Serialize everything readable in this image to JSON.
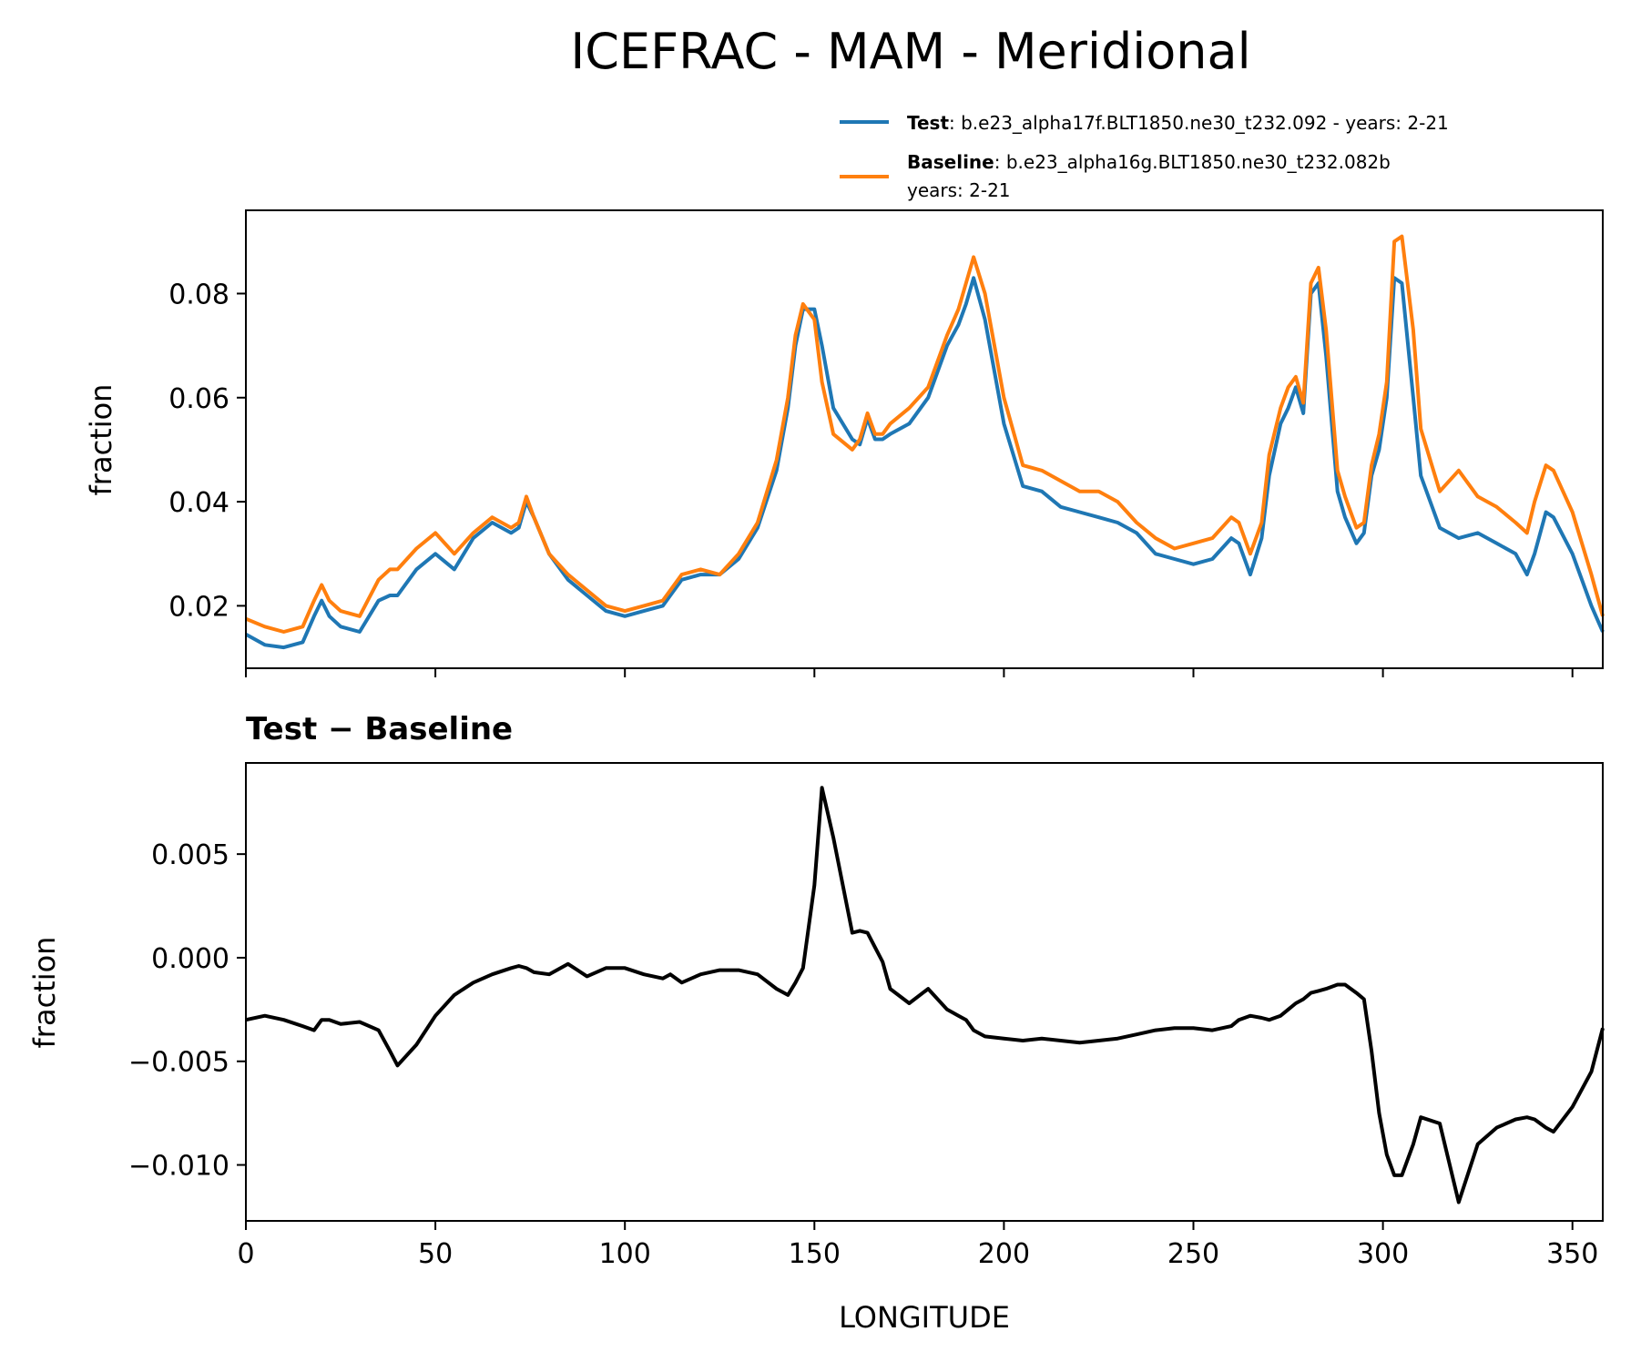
{
  "chart_data": [
    {
      "type": "line",
      "title": "ICEFRAC - MAM - Meridional",
      "xlabel": "",
      "ylabel": "fraction",
      "xlim": [
        0,
        358
      ],
      "ylim": [
        0.008,
        0.096
      ],
      "yticks": [
        0.02,
        0.04,
        0.06,
        0.08
      ],
      "ytick_labels": [
        "0.02",
        "0.04",
        "0.06",
        "0.08"
      ],
      "xticks": [
        0,
        50,
        100,
        150,
        200,
        250,
        300,
        350
      ],
      "legend": {
        "placement": "above-right",
        "entries": [
          {
            "bold": "Test",
            "text": ": b.e23_alpha17f.BLT1850.ne30_t232.092 - years: 2-21",
            "line2": ""
          },
          {
            "bold": "Baseline",
            "text": ": b.e23_alpha16g.BLT1850.ne30_t232.082b",
            "line2": "years: 2-21"
          }
        ]
      },
      "x": [
        0,
        5,
        10,
        15,
        18,
        20,
        22,
        25,
        30,
        35,
        38,
        40,
        45,
        50,
        55,
        60,
        65,
        70,
        72,
        74,
        76,
        80,
        85,
        90,
        95,
        100,
        105,
        110,
        112,
        115,
        120,
        125,
        130,
        135,
        140,
        143,
        145,
        147,
        150,
        152,
        155,
        160,
        162,
        164,
        166,
        168,
        170,
        175,
        180,
        185,
        188,
        190,
        192,
        195,
        200,
        205,
        210,
        215,
        220,
        225,
        230,
        235,
        240,
        245,
        250,
        255,
        260,
        262,
        265,
        268,
        270,
        273,
        275,
        277,
        279,
        281,
        283,
        285,
        288,
        290,
        293,
        295,
        297,
        299,
        301,
        303,
        305,
        308,
        310,
        315,
        320,
        325,
        330,
        335,
        338,
        340,
        343,
        345,
        350,
        355,
        358
      ],
      "series": [
        {
          "name": "Test",
          "color": "#1f77b4",
          "values": [
            0.0145,
            0.0125,
            0.012,
            0.013,
            0.018,
            0.021,
            0.018,
            0.016,
            0.015,
            0.021,
            0.022,
            0.022,
            0.027,
            0.03,
            0.027,
            0.033,
            0.036,
            0.034,
            0.035,
            0.04,
            0.037,
            0.03,
            0.025,
            0.022,
            0.019,
            0.018,
            0.019,
            0.02,
            0.022,
            0.025,
            0.026,
            0.026,
            0.029,
            0.035,
            0.046,
            0.058,
            0.07,
            0.077,
            0.077,
            0.07,
            0.058,
            0.052,
            0.051,
            0.056,
            0.052,
            0.052,
            0.053,
            0.055,
            0.06,
            0.07,
            0.074,
            0.078,
            0.083,
            0.075,
            0.055,
            0.043,
            0.042,
            0.039,
            0.038,
            0.037,
            0.036,
            0.034,
            0.03,
            0.029,
            0.028,
            0.029,
            0.033,
            0.032,
            0.026,
            0.033,
            0.045,
            0.055,
            0.058,
            0.062,
            0.057,
            0.08,
            0.082,
            0.068,
            0.042,
            0.037,
            0.032,
            0.034,
            0.045,
            0.05,
            0.06,
            0.083,
            0.082,
            0.06,
            0.045,
            0.035,
            0.033,
            0.034,
            0.032,
            0.03,
            0.026,
            0.03,
            0.038,
            0.037,
            0.03,
            0.02,
            0.015
          ]
        },
        {
          "name": "Baseline",
          "color": "#ff7f0e",
          "values": [
            0.0175,
            0.016,
            0.015,
            0.016,
            0.021,
            0.024,
            0.021,
            0.019,
            0.018,
            0.025,
            0.027,
            0.027,
            0.031,
            0.034,
            0.03,
            0.034,
            0.037,
            0.035,
            0.036,
            0.041,
            0.037,
            0.03,
            0.026,
            0.023,
            0.02,
            0.019,
            0.02,
            0.021,
            0.023,
            0.026,
            0.027,
            0.026,
            0.03,
            0.036,
            0.048,
            0.06,
            0.072,
            0.078,
            0.075,
            0.063,
            0.053,
            0.05,
            0.052,
            0.057,
            0.053,
            0.053,
            0.055,
            0.058,
            0.062,
            0.072,
            0.077,
            0.082,
            0.087,
            0.08,
            0.06,
            0.047,
            0.046,
            0.044,
            0.042,
            0.042,
            0.04,
            0.036,
            0.033,
            0.031,
            0.032,
            0.033,
            0.037,
            0.036,
            0.03,
            0.036,
            0.049,
            0.058,
            0.062,
            0.064,
            0.059,
            0.082,
            0.085,
            0.073,
            0.046,
            0.041,
            0.035,
            0.036,
            0.047,
            0.053,
            0.063,
            0.09,
            0.091,
            0.073,
            0.054,
            0.042,
            0.046,
            0.041,
            0.039,
            0.036,
            0.034,
            0.04,
            0.047,
            0.046,
            0.038,
            0.026,
            0.018
          ]
        }
      ]
    },
    {
      "type": "line",
      "title": "Test − Baseline",
      "xlabel": "LONGITUDE",
      "ylabel": "fraction",
      "xlim": [
        0,
        358
      ],
      "ylim": [
        -0.0127,
        0.0094
      ],
      "yticks": [
        0.005,
        0.0,
        -0.005,
        -0.01
      ],
      "ytick_labels": [
        "0.005",
        "0.000",
        "−0.005",
        "−0.010"
      ],
      "xticks": [
        0,
        50,
        100,
        150,
        200,
        250,
        300,
        350
      ],
      "xtick_labels": [
        "0",
        "50",
        "100",
        "150",
        "200",
        "250",
        "300",
        "350"
      ],
      "x": [
        0,
        5,
        10,
        15,
        18,
        20,
        22,
        25,
        30,
        35,
        38,
        40,
        45,
        50,
        55,
        60,
        65,
        70,
        72,
        74,
        76,
        80,
        85,
        90,
        95,
        100,
        105,
        110,
        112,
        115,
        120,
        125,
        130,
        135,
        140,
        143,
        145,
        147,
        150,
        152,
        155,
        160,
        162,
        164,
        166,
        168,
        170,
        175,
        180,
        185,
        188,
        190,
        192,
        195,
        200,
        205,
        210,
        215,
        220,
        225,
        230,
        235,
        240,
        245,
        250,
        255,
        260,
        262,
        265,
        268,
        270,
        273,
        275,
        277,
        279,
        281,
        283,
        285,
        288,
        290,
        293,
        295,
        297,
        299,
        301,
        303,
        305,
        308,
        310,
        315,
        320,
        325,
        330,
        335,
        338,
        340,
        343,
        345,
        350,
        355,
        358
      ],
      "series": [
        {
          "name": "Test − Baseline",
          "color": "#000000",
          "values": [
            -0.003,
            -0.0028,
            -0.003,
            -0.0033,
            -0.0035,
            -0.003,
            -0.003,
            -0.0032,
            -0.0031,
            -0.0035,
            -0.0045,
            -0.0052,
            -0.0042,
            -0.0028,
            -0.0018,
            -0.0012,
            -0.0008,
            -0.0005,
            -0.0004,
            -0.0005,
            -0.0007,
            -0.0008,
            -0.0003,
            -0.0009,
            -0.0005,
            -0.0005,
            -0.0008,
            -0.001,
            -0.0008,
            -0.0012,
            -0.0008,
            -0.0006,
            -0.0006,
            -0.0008,
            -0.0015,
            -0.0018,
            -0.0012,
            -0.0005,
            0.0035,
            0.0082,
            0.0058,
            0.0012,
            0.0013,
            0.0012,
            0.0005,
            -0.0002,
            -0.0015,
            -0.0022,
            -0.0015,
            -0.0025,
            -0.0028,
            -0.003,
            -0.0035,
            -0.0038,
            -0.0039,
            -0.004,
            -0.0039,
            -0.004,
            -0.0041,
            -0.004,
            -0.0039,
            -0.0037,
            -0.0035,
            -0.0034,
            -0.0034,
            -0.0035,
            -0.0033,
            -0.003,
            -0.0028,
            -0.0029,
            -0.003,
            -0.0028,
            -0.0025,
            -0.0022,
            -0.002,
            -0.0017,
            -0.0016,
            -0.0015,
            -0.0013,
            -0.0013,
            -0.0017,
            -0.002,
            -0.0045,
            -0.0075,
            -0.0095,
            -0.0105,
            -0.0105,
            -0.009,
            -0.0077,
            -0.008,
            -0.0118,
            -0.009,
            -0.0082,
            -0.0078,
            -0.0077,
            -0.0078,
            -0.0082,
            -0.0084,
            -0.0072,
            -0.0055,
            -0.0034
          ]
        }
      ]
    }
  ]
}
